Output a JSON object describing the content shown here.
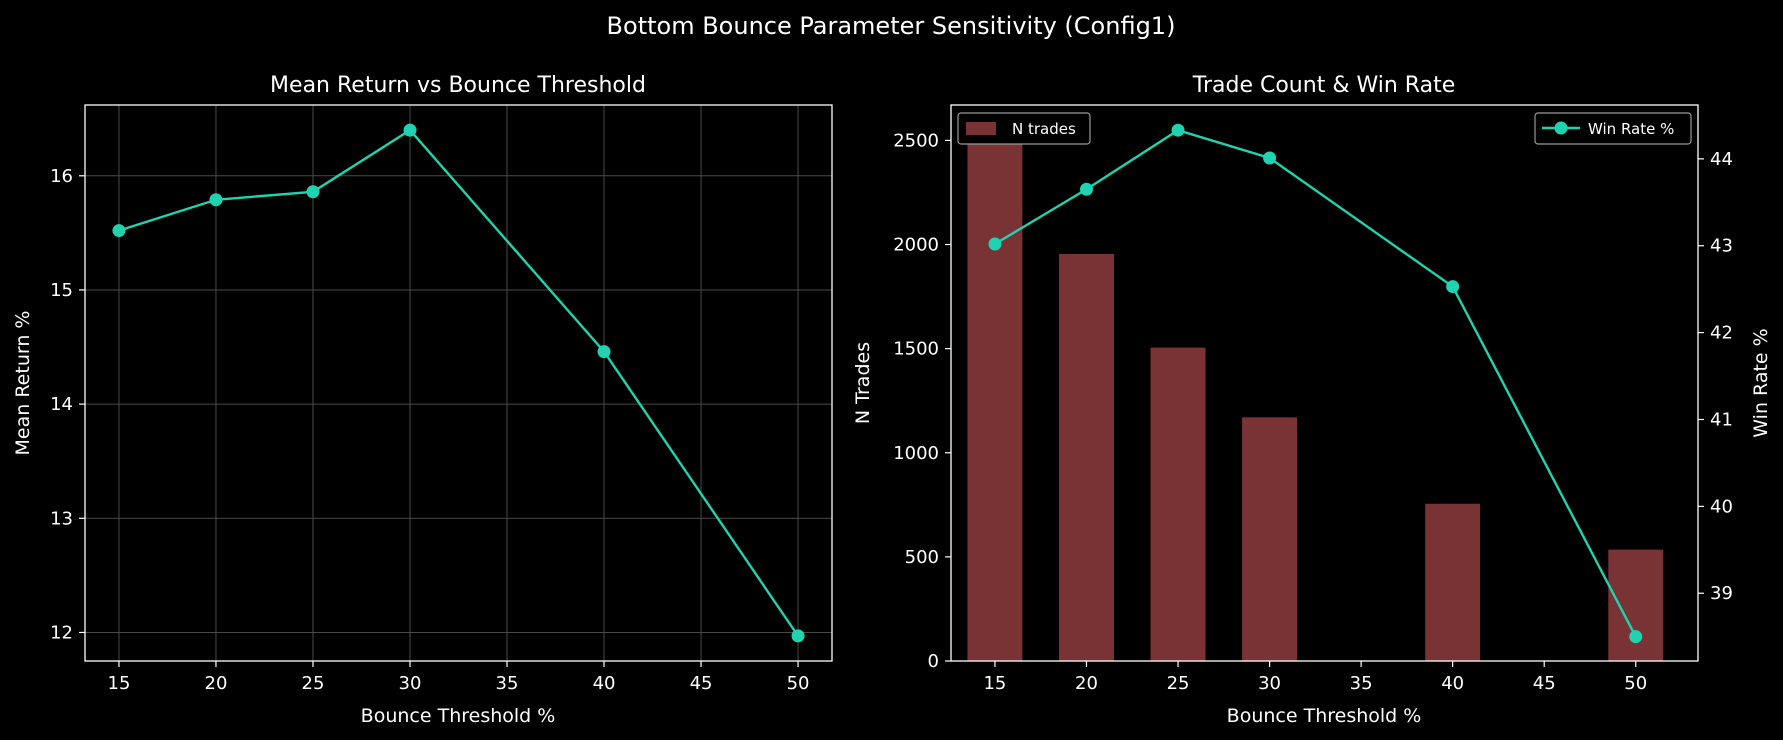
{
  "figure": {
    "suptitle": "Bottom Bounce Parameter Sensitivity (Config1)"
  },
  "colors": {
    "background": "#000000",
    "line": "#1fd3b0",
    "bar": "#7a3335",
    "grid": "#4a4a4a",
    "axis": "#ffffff"
  },
  "chart_data": [
    {
      "type": "line",
      "title": "Mean Return vs Bounce Threshold",
      "xlabel": "Bounce Threshold %",
      "ylabel": "Mean Return %",
      "x": [
        15,
        20,
        25,
        30,
        40,
        50
      ],
      "y": [
        15.52,
        15.79,
        15.86,
        16.4,
        14.46,
        11.97
      ],
      "xlim": [
        13.25,
        51.75
      ],
      "ylim": [
        11.75,
        16.62
      ],
      "xticks": [
        15,
        20,
        25,
        30,
        35,
        40,
        45,
        50
      ],
      "yticks": [
        12,
        13,
        14,
        15,
        16
      ],
      "grid": true,
      "marker": "circle"
    },
    {
      "type": "bar",
      "title": "Trade Count & Win Rate",
      "xlabel": "Bounce Threshold %",
      "ylabel": "N Trades",
      "x": [
        15,
        20,
        25,
        30,
        40,
        50
      ],
      "values": [
        2520,
        1955,
        1505,
        1170,
        755,
        535
      ],
      "bar_width": 3,
      "xlim": [
        12.6,
        53.4
      ],
      "ylim": [
        0,
        2670
      ],
      "xticks": [
        15,
        20,
        25,
        30,
        35,
        40,
        45,
        50
      ],
      "yticks": [
        0,
        500,
        1000,
        1500,
        2000,
        2500
      ],
      "grid": false,
      "legend": {
        "label": "N trades",
        "position": "upper left"
      },
      "secondary": {
        "type": "line",
        "ylabel": "Win Rate %",
        "name": "Win Rate %",
        "x": [
          15,
          20,
          25,
          30,
          40,
          50
        ],
        "y": [
          43.02,
          43.65,
          44.33,
          44.01,
          42.53,
          38.5
        ],
        "ylim": [
          38.22,
          44.62
        ],
        "yticks": [
          39,
          40,
          41,
          42,
          43,
          44
        ],
        "legend": {
          "position": "upper right"
        }
      }
    }
  ]
}
